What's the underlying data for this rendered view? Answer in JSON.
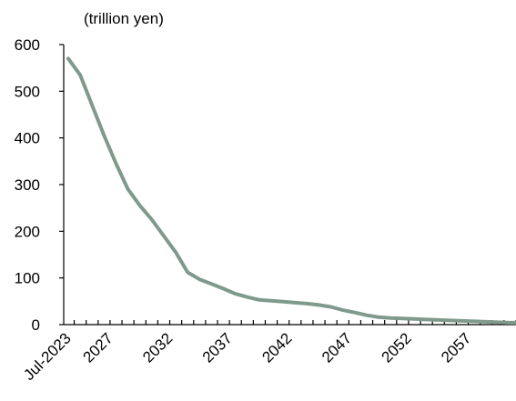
{
  "chart_data": {
    "type": "line",
    "title": "",
    "unit_label": "(trillion yen)",
    "xlabel": "",
    "ylabel": "",
    "ylim": [
      0,
      600
    ],
    "y_ticks": [
      0,
      100,
      200,
      300,
      400,
      500,
      600
    ],
    "x_tick_labels": [
      "Jul-2023",
      "2027",
      "2032",
      "2037",
      "2042",
      "2047",
      "2052",
      "2057"
    ],
    "x_tick_positions": [
      2023.5,
      2027,
      2032,
      2037,
      2042,
      2047,
      2052,
      2057
    ],
    "x_range": [
      2023.5,
      2061
    ],
    "grid": false,
    "legend": "none",
    "line_color": "#7f9a8c",
    "series": [
      {
        "x": [
          2023.5,
          2024.5,
          2025.5,
          2026.5,
          2027.5,
          2028.5,
          2029.5,
          2030.5,
          2031.5,
          2032.5,
          2033.5,
          2034.5,
          2035.5,
          2036.5,
          2037.5,
          2038.5,
          2039.5,
          2040.5,
          2041.5,
          2042.5,
          2043.5,
          2044.5,
          2045.5,
          2046.5,
          2047.5,
          2048.5,
          2049.5,
          2050.5,
          2051.5,
          2052.5,
          2053.5,
          2054.5,
          2055.5,
          2056.5,
          2057.5,
          2058.5,
          2059.5,
          2060.5,
          2061
        ],
        "values": [
          570,
          535,
          470,
          405,
          345,
          290,
          255,
          225,
          190,
          155,
          112,
          97,
          87,
          77,
          66,
          59,
          53,
          51,
          49,
          47,
          45,
          42,
          38,
          31,
          26,
          20,
          16,
          14,
          13,
          12,
          11,
          10,
          9,
          8,
          7,
          6,
          5,
          4,
          4
        ]
      }
    ]
  }
}
